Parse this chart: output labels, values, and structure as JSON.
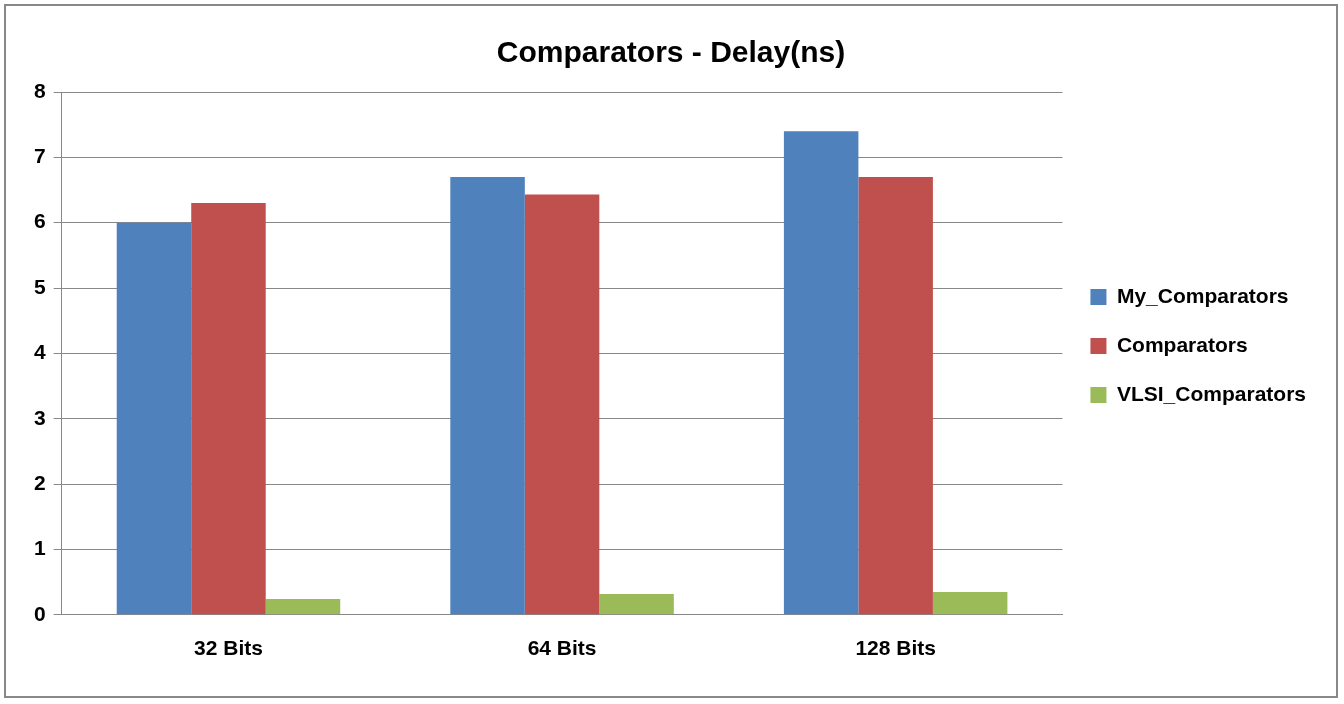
{
  "chart_data": {
    "type": "bar",
    "title": "Comparators - Delay(ns)",
    "categories": [
      "32 Bits",
      "64 Bits",
      "128 Bits"
    ],
    "series": [
      {
        "name": "My_Comparators",
        "color": "#4f81bd",
        "values": [
          6.0,
          6.7,
          7.4
        ]
      },
      {
        "name": "Comparators",
        "color": "#c0504d",
        "values": [
          6.3,
          6.43,
          6.7
        ]
      },
      {
        "name": "VLSI_Comparators",
        "color": "#9bbb59",
        "values": [
          0.24,
          0.32,
          0.35
        ]
      }
    ],
    "ylim": [
      0,
      8
    ],
    "yticks": [
      0,
      1,
      2,
      3,
      4,
      5,
      6,
      7,
      8
    ],
    "grid": "y",
    "legend": "right"
  }
}
